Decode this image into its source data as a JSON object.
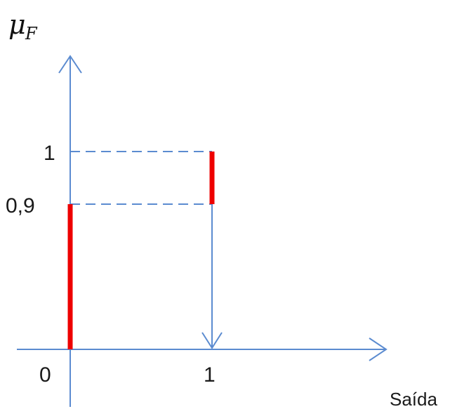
{
  "y_axis_label": {
    "symbol": "μ",
    "subscript": "F"
  },
  "x_axis_label": "Saída",
  "y_ticks": {
    "top": "1",
    "mid": "0,9"
  },
  "x_ticks": {
    "origin": "0",
    "one": "1"
  },
  "colors": {
    "axis": "#5b8bd0",
    "highlight": "#ee0000"
  },
  "diagram": {
    "description_free": true,
    "segments": [
      {
        "name": "red-segment-y-axis",
        "x": 0,
        "y_from": 0,
        "y_to": 0.9
      },
      {
        "name": "red-segment-at-1",
        "x": 1,
        "y_from": 0.9,
        "y_to": 1
      }
    ],
    "guides": [
      {
        "name": "dashed-line-1",
        "y": 1,
        "x_to": 1
      },
      {
        "name": "dashed-line-09",
        "y": 0.9,
        "x_to": 1
      }
    ],
    "arrow": {
      "name": "down-arrow",
      "x": 1,
      "y_from": 0.9,
      "y_to": 0
    }
  }
}
